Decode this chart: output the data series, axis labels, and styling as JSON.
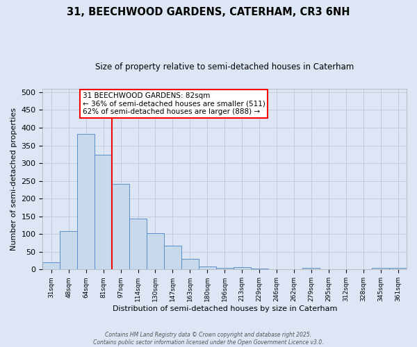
{
  "title_line1": "31, BEECHWOOD GARDENS, CATERHAM, CR3 6NH",
  "title_line2": "Size of property relative to semi-detached houses in Caterham",
  "xlabel": "Distribution of semi-detached houses by size in Caterham",
  "ylabel": "Number of semi-detached properties",
  "bar_labels": [
    "31sqm",
    "48sqm",
    "64sqm",
    "81sqm",
    "97sqm",
    "114sqm",
    "130sqm",
    "147sqm",
    "163sqm",
    "180sqm",
    "196sqm",
    "213sqm",
    "229sqm",
    "246sqm",
    "262sqm",
    "279sqm",
    "295sqm",
    "312sqm",
    "328sqm",
    "345sqm",
    "361sqm"
  ],
  "bar_values": [
    20,
    108,
    383,
    323,
    241,
    144,
    102,
    67,
    30,
    9,
    5,
    6,
    2,
    0,
    0,
    4,
    0,
    0,
    0,
    4,
    4
  ],
  "bar_color": "#c9d9ec",
  "bar_edgecolor": "#5b8fc9",
  "red_line_index": 3.5,
  "annotation_text": "31 BEECHWOOD GARDENS: 82sqm\n← 36% of semi-detached houses are smaller (511)\n62% of semi-detached houses are larger (888) →",
  "annotation_box_color": "white",
  "annotation_box_edgecolor": "red",
  "grid_color": "#c0c8d8",
  "background_color": "#dce6f5",
  "plot_bg_color": "#dce6f5",
  "footer_text": "Contains HM Land Registry data © Crown copyright and database right 2025.\nContains public sector information licensed under the Open Government Licence v3.0.",
  "ylim": [
    0,
    510
  ],
  "yticks": [
    0,
    50,
    100,
    150,
    200,
    250,
    300,
    350,
    400,
    450,
    500
  ]
}
